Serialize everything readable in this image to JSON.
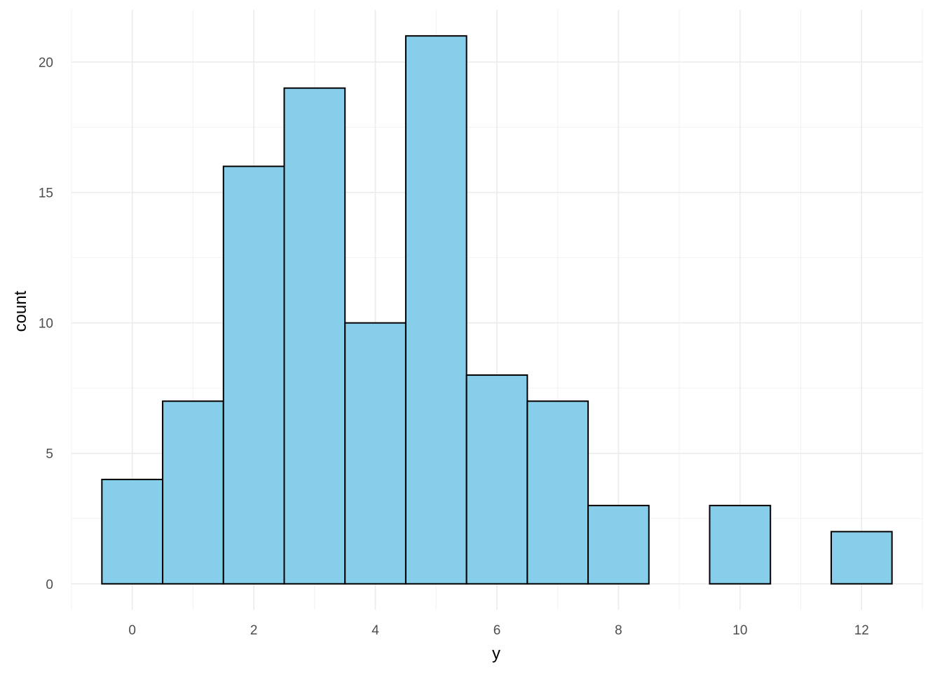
{
  "chart_data": {
    "type": "bar",
    "subtype": "histogram",
    "title": "",
    "xlabel": "y",
    "ylabel": "count",
    "bin_width": 1,
    "bins": [
      {
        "center": 0,
        "count": 4
      },
      {
        "center": 1,
        "count": 7
      },
      {
        "center": 2,
        "count": 16
      },
      {
        "center": 3,
        "count": 19
      },
      {
        "center": 4,
        "count": 10
      },
      {
        "center": 5,
        "count": 21
      },
      {
        "center": 6,
        "count": 8
      },
      {
        "center": 7,
        "count": 7
      },
      {
        "center": 8,
        "count": 3
      },
      {
        "center": 9,
        "count": 0
      },
      {
        "center": 10,
        "count": 3
      },
      {
        "center": 11,
        "count": 0
      },
      {
        "center": 12,
        "count": 2
      }
    ],
    "xlim": [
      -1,
      13
    ],
    "ylim": [
      -1,
      22
    ],
    "x_ticks": [
      0,
      2,
      4,
      6,
      8,
      10,
      12
    ],
    "y_ticks": [
      0,
      5,
      10,
      15,
      20
    ],
    "grid": true,
    "legend": "none",
    "colors": {
      "bar_fill": "#87CEEB",
      "bar_outline": "#000000",
      "grid_major": "#ebebeb",
      "grid_minor": "#f2f2f2",
      "tick_text": "#4d4d4d"
    }
  }
}
